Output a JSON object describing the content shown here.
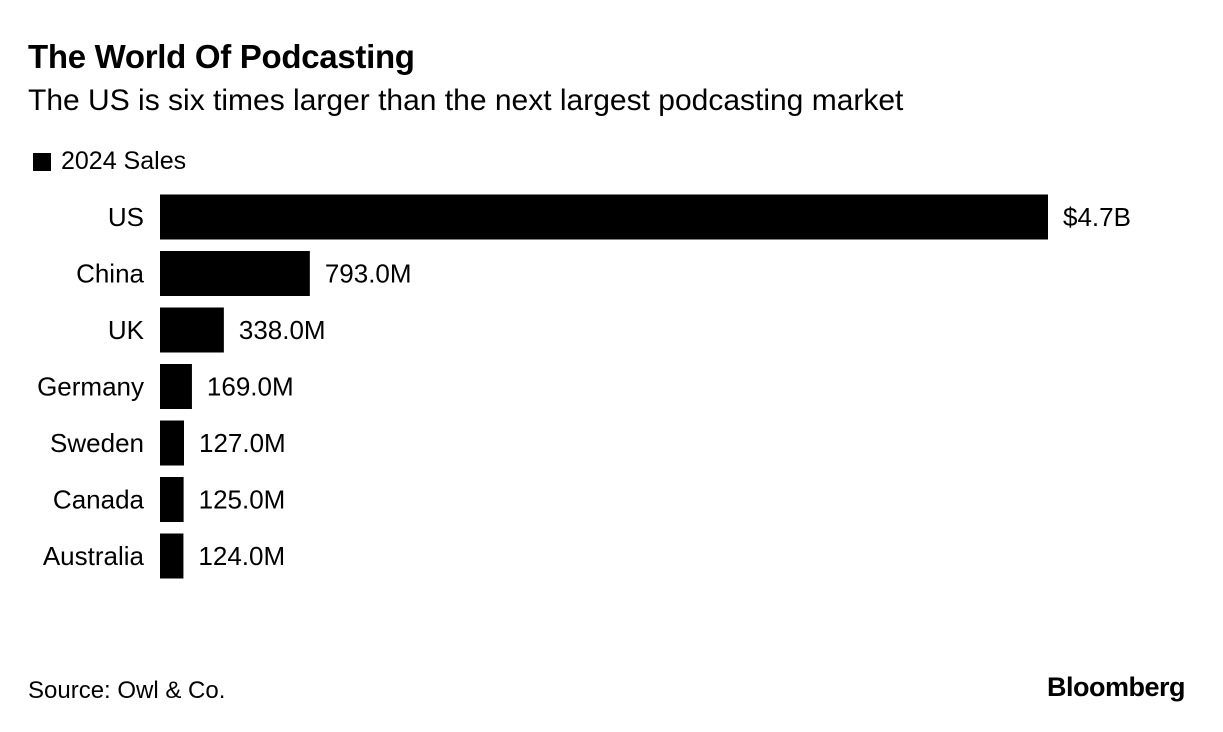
{
  "header": {
    "title": "The World Of Podcasting",
    "subtitle": "The US is six times larger than the next largest podcasting market"
  },
  "legend": {
    "label": "2024 Sales"
  },
  "footer": {
    "source": "Source: Owl & Co.",
    "brand": "Bloomberg"
  },
  "colors": {
    "bar": "#000000",
    "text": "#000000",
    "background": "#ffffff"
  },
  "chart_data": {
    "type": "bar",
    "orientation": "horizontal",
    "title": "The World Of Podcasting",
    "subtitle": "The US is six times larger than the next largest podcasting market",
    "categories": [
      "US",
      "China",
      "UK",
      "Germany",
      "Sweden",
      "Canada",
      "Australia"
    ],
    "series": [
      {
        "name": "2024 Sales",
        "values": [
          4700,
          793,
          338,
          169,
          127,
          125,
          124
        ],
        "labels": [
          "$4.7B",
          "793.0M",
          "338.0M",
          "169.0M",
          "127.0M",
          "125.0M",
          "124.0M"
        ]
      }
    ],
    "unit": "millions of US dollars",
    "xlim": [
      0,
      4700
    ],
    "grid": false,
    "legend_position": "top-left"
  }
}
